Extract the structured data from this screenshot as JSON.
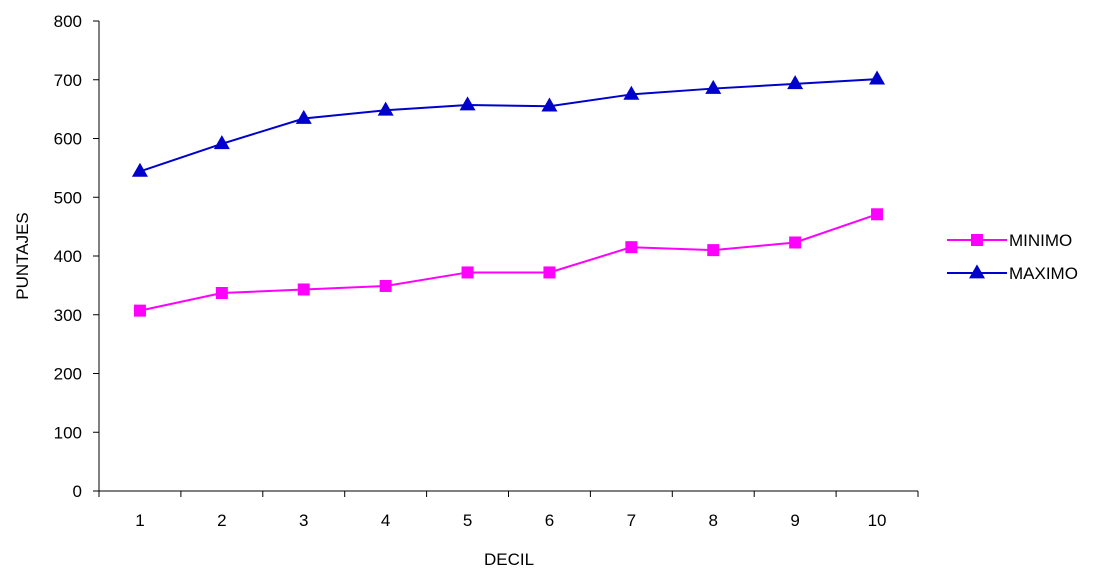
{
  "chart_data": {
    "type": "line",
    "title": "",
    "xlabel": "DECIL",
    "ylabel": "PUNTAJES",
    "categories": [
      "1",
      "2",
      "3",
      "4",
      "5",
      "6",
      "7",
      "8",
      "9",
      "10"
    ],
    "ylim": [
      0,
      800
    ],
    "yticks": [
      0,
      100,
      200,
      300,
      400,
      500,
      600,
      700,
      800
    ],
    "grid": false,
    "legend_position": "right",
    "series": [
      {
        "name": "MINIMO",
        "color": "#FF00FF",
        "marker": "square",
        "values": [
          307,
          337,
          343,
          349,
          372,
          372,
          415,
          410,
          423,
          471
        ]
      },
      {
        "name": "MAXIMO",
        "color": "#0000CC",
        "marker": "triangle",
        "values": [
          544,
          591,
          634,
          648,
          657,
          655,
          675,
          685,
          693,
          701
        ]
      }
    ]
  }
}
